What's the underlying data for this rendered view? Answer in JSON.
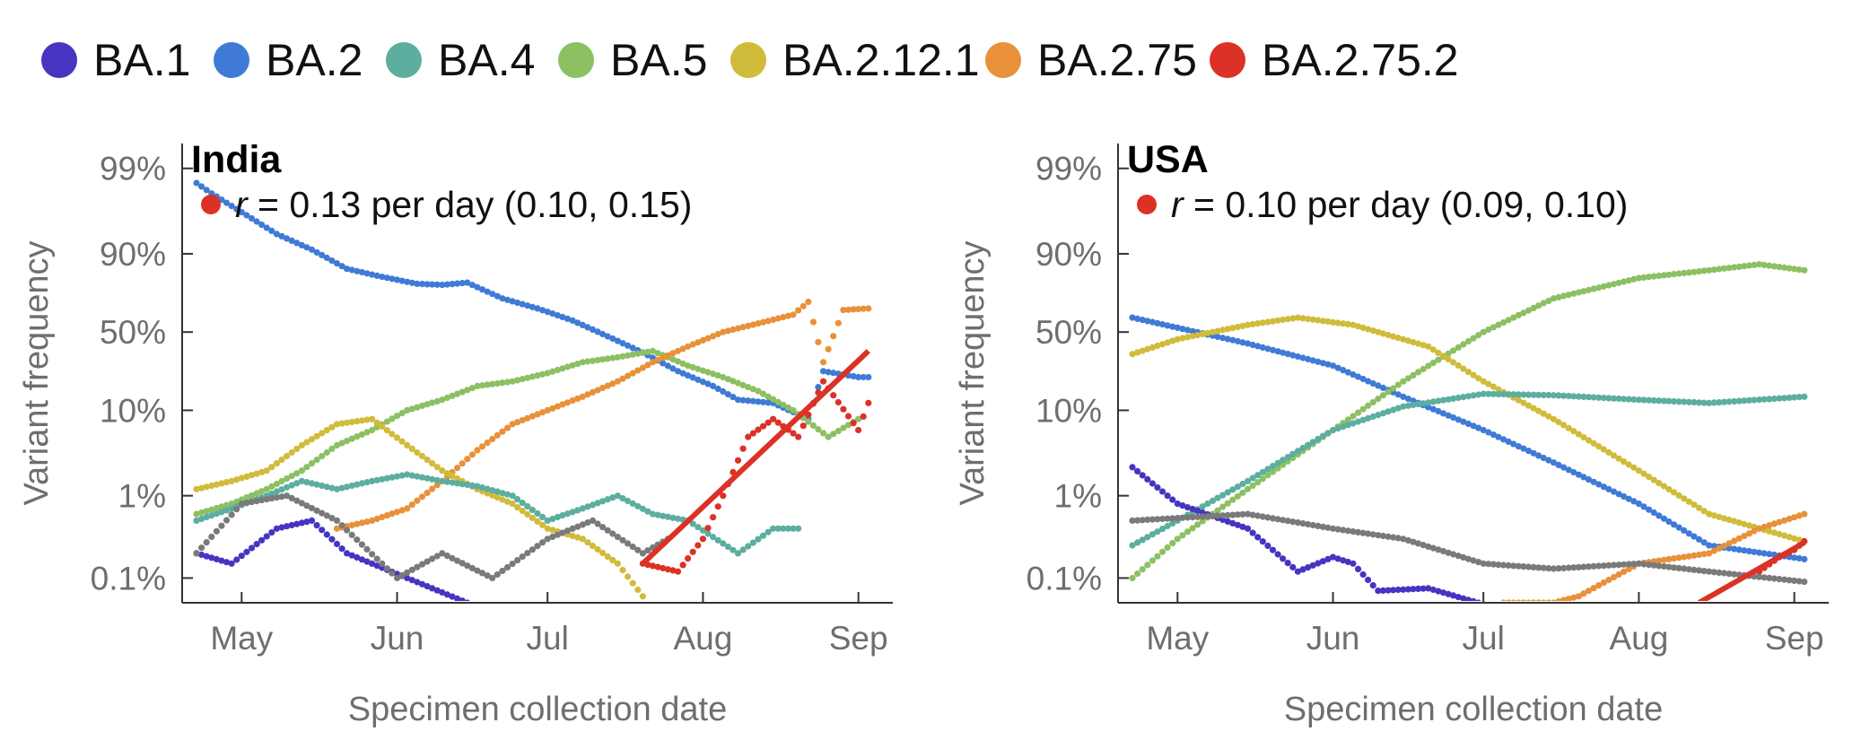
{
  "legend": [
    {
      "name": "BA.1",
      "color": "#4535c1"
    },
    {
      "name": "BA.2",
      "color": "#3f7bd6"
    },
    {
      "name": "BA.4",
      "color": "#5cae9f"
    },
    {
      "name": "BA.5",
      "color": "#8cc063"
    },
    {
      "name": "BA.2.12.1",
      "color": "#d1bb3b"
    },
    {
      "name": "BA.2.75",
      "color": "#e8913a"
    },
    {
      "name": "BA.2.75.2",
      "color": "#dc3126"
    }
  ],
  "other_color": "#7a7a7a",
  "chart_data": [
    {
      "type": "scatter",
      "title": "India",
      "rate": {
        "prefix": "r",
        "text": " = 0.13 per day (0.10, 0.15)",
        "color": "#dc3126"
      },
      "xlabel": "Specimen collection date",
      "ylabel": "Variant frequency",
      "yscale": "logit",
      "x_ticks": [
        {
          "label": "May",
          "date": "2022-05-01"
        },
        {
          "label": "Jun",
          "date": "2022-06-01"
        },
        {
          "label": "Jul",
          "date": "2022-07-01"
        },
        {
          "label": "Aug",
          "date": "2022-08-01"
        },
        {
          "label": "Sep",
          "date": "2022-09-01"
        }
      ],
      "y_ticks": [
        {
          "label": "99%",
          "value": 0.99
        },
        {
          "label": "90%",
          "value": 0.9
        },
        {
          "label": "50%",
          "value": 0.5
        },
        {
          "label": "10%",
          "value": 0.1
        },
        {
          "label": "1%",
          "value": 0.01
        },
        {
          "label": "0.1%",
          "value": 0.001
        }
      ],
      "xlim": [
        "2022-04-22",
        "2022-09-05"
      ],
      "ylim": [
        0.0005,
        0.995
      ],
      "series": [
        {
          "name": "BA.2",
          "points": [
            [
              "2022-04-22",
              0.985
            ],
            [
              "2022-04-25",
              0.98
            ],
            [
              "2022-05-08",
              0.94
            ],
            [
              "2022-05-15",
              0.91
            ],
            [
              "2022-05-22",
              0.855
            ],
            [
              "2022-05-29",
              0.825
            ],
            [
              "2022-06-05",
              0.795
            ],
            [
              "2022-06-10",
              0.79
            ],
            [
              "2022-06-15",
              0.8
            ],
            [
              "2022-06-22",
              0.72
            ],
            [
              "2022-06-29",
              0.66
            ],
            [
              "2022-07-06",
              0.58
            ],
            [
              "2022-07-13",
              0.47
            ],
            [
              "2022-07-20",
              0.36
            ],
            [
              "2022-07-27",
              0.25
            ],
            [
              "2022-08-03",
              0.18
            ],
            [
              "2022-08-08",
              0.13
            ],
            [
              "2022-08-15",
              0.12
            ],
            [
              "2022-08-22",
              0.08
            ],
            [
              "2022-08-25",
              0.25
            ],
            [
              "2022-09-01",
              0.22
            ],
            [
              "2022-09-03",
              0.22
            ]
          ]
        },
        {
          "name": "BA.5",
          "points": [
            [
              "2022-04-22",
              0.006
            ],
            [
              "2022-04-29",
              0.008
            ],
            [
              "2022-05-06",
              0.012
            ],
            [
              "2022-05-13",
              0.02
            ],
            [
              "2022-05-20",
              0.04
            ],
            [
              "2022-05-27",
              0.06
            ],
            [
              "2022-06-03",
              0.1
            ],
            [
              "2022-06-10",
              0.13
            ],
            [
              "2022-06-17",
              0.18
            ],
            [
              "2022-06-24",
              0.2
            ],
            [
              "2022-07-01",
              0.24
            ],
            [
              "2022-07-08",
              0.3
            ],
            [
              "2022-07-15",
              0.33
            ],
            [
              "2022-07-22",
              0.37
            ],
            [
              "2022-07-29",
              0.28
            ],
            [
              "2022-08-05",
              0.22
            ],
            [
              "2022-08-12",
              0.16
            ],
            [
              "2022-08-19",
              0.1
            ],
            [
              "2022-08-26",
              0.05
            ],
            [
              "2022-09-01",
              0.08
            ]
          ]
        },
        {
          "name": "BA.2.75",
          "points": [
            [
              "2022-05-20",
              0.004
            ],
            [
              "2022-05-27",
              0.005
            ],
            [
              "2022-06-03",
              0.007
            ],
            [
              "2022-06-10",
              0.015
            ],
            [
              "2022-06-17",
              0.035
            ],
            [
              "2022-06-24",
              0.07
            ],
            [
              "2022-07-01",
              0.1
            ],
            [
              "2022-07-08",
              0.14
            ],
            [
              "2022-07-15",
              0.2
            ],
            [
              "2022-07-22",
              0.3
            ],
            [
              "2022-07-29",
              0.4
            ],
            [
              "2022-08-05",
              0.5
            ],
            [
              "2022-08-12",
              0.56
            ],
            [
              "2022-08-19",
              0.62
            ],
            [
              "2022-08-22",
              0.7
            ],
            [
              "2022-08-25",
              0.3
            ],
            [
              "2022-08-29",
              0.65
            ],
            [
              "2022-09-03",
              0.66
            ]
          ]
        },
        {
          "name": "BA.2.12.1",
          "points": [
            [
              "2022-04-22",
              0.012
            ],
            [
              "2022-04-29",
              0.015
            ],
            [
              "2022-05-06",
              0.02
            ],
            [
              "2022-05-13",
              0.04
            ],
            [
              "2022-05-20",
              0.07
            ],
            [
              "2022-05-27",
              0.08
            ],
            [
              "2022-06-03",
              0.04
            ],
            [
              "2022-06-10",
              0.02
            ],
            [
              "2022-06-17",
              0.012
            ],
            [
              "2022-06-24",
              0.008
            ],
            [
              "2022-07-01",
              0.004
            ],
            [
              "2022-07-08",
              0.003
            ],
            [
              "2022-07-15",
              0.0015
            ],
            [
              "2022-07-20",
              0.0006
            ]
          ]
        },
        {
          "name": "BA.4",
          "points": [
            [
              "2022-04-22",
              0.005
            ],
            [
              "2022-04-29",
              0.007
            ],
            [
              "2022-05-06",
              0.01
            ],
            [
              "2022-05-13",
              0.015
            ],
            [
              "2022-05-20",
              0.012
            ],
            [
              "2022-05-27",
              0.015
            ],
            [
              "2022-06-03",
              0.018
            ],
            [
              "2022-06-10",
              0.015
            ],
            [
              "2022-06-17",
              0.013
            ],
            [
              "2022-06-24",
              0.01
            ],
            [
              "2022-07-01",
              0.005
            ],
            [
              "2022-07-08",
              0.007
            ],
            [
              "2022-07-15",
              0.01
            ],
            [
              "2022-07-22",
              0.006
            ],
            [
              "2022-07-29",
              0.005
            ],
            [
              "2022-08-08",
              0.002
            ],
            [
              "2022-08-15",
              0.004
            ],
            [
              "2022-08-20",
              0.004
            ]
          ]
        },
        {
          "name": "BA.1",
          "points": [
            [
              "2022-04-22",
              0.002
            ],
            [
              "2022-04-29",
              0.0015
            ],
            [
              "2022-05-08",
              0.004
            ],
            [
              "2022-05-15",
              0.005
            ],
            [
              "2022-05-22",
              0.002
            ],
            [
              "2022-06-15",
              0.0005
            ]
          ]
        },
        {
          "name": "BA.2.75.2",
          "points": [
            [
              "2022-07-20",
              0.0015
            ],
            [
              "2022-07-27",
              0.0012
            ],
            [
              "2022-08-01",
              0.003
            ],
            [
              "2022-08-05",
              0.01
            ],
            [
              "2022-08-10",
              0.05
            ],
            [
              "2022-08-15",
              0.08
            ],
            [
              "2022-08-20",
              0.05
            ],
            [
              "2022-08-25",
              0.2
            ],
            [
              "2022-09-01",
              0.06
            ],
            [
              "2022-09-03",
              0.12
            ]
          ]
        },
        {
          "name": "other",
          "points": [
            [
              "2022-04-22",
              0.002
            ],
            [
              "2022-05-01",
              0.008
            ],
            [
              "2022-05-10",
              0.01
            ],
            [
              "2022-05-20",
              0.005
            ],
            [
              "2022-06-01",
              0.001
            ],
            [
              "2022-06-10",
              0.002
            ],
            [
              "2022-06-20",
              0.001
            ],
            [
              "2022-07-01",
              0.003
            ],
            [
              "2022-07-10",
              0.005
            ],
            [
              "2022-07-20",
              0.002
            ],
            [
              "2022-07-25",
              0.003
            ]
          ]
        }
      ],
      "fit": {
        "color": "#dc3126",
        "from": [
          "2022-07-20",
          0.0015
        ],
        "to": [
          "2022-09-03",
          0.37
        ]
      }
    },
    {
      "type": "scatter",
      "title": "USA",
      "rate": {
        "prefix": "r",
        "text": " = 0.10 per day (0.09, 0.10)",
        "color": "#dc3126"
      },
      "xlabel": "Specimen collection date",
      "ylabel": "Variant frequency",
      "yscale": "logit",
      "x_ticks": [
        {
          "label": "May",
          "date": "2022-05-01"
        },
        {
          "label": "Jun",
          "date": "2022-06-01"
        },
        {
          "label": "Jul",
          "date": "2022-07-01"
        },
        {
          "label": "Aug",
          "date": "2022-08-01"
        },
        {
          "label": "Sep",
          "date": "2022-09-01"
        }
      ],
      "y_ticks": [
        {
          "label": "99%",
          "value": 0.99
        },
        {
          "label": "90%",
          "value": 0.9
        },
        {
          "label": "50%",
          "value": 0.5
        },
        {
          "label": "10%",
          "value": 0.1
        },
        {
          "label": "1%",
          "value": 0.01
        },
        {
          "label": "0.1%",
          "value": 0.001
        }
      ],
      "xlim": [
        "2022-04-22",
        "2022-09-05"
      ],
      "ylim": [
        0.0005,
        0.995
      ],
      "series": [
        {
          "name": "BA.2",
          "points": [
            [
              "2022-04-22",
              0.6
            ],
            [
              "2022-05-01",
              0.53
            ],
            [
              "2022-05-15",
              0.42
            ],
            [
              "2022-06-01",
              0.28
            ],
            [
              "2022-06-15",
              0.14
            ],
            [
              "2022-07-01",
              0.06
            ],
            [
              "2022-07-15",
              0.025
            ],
            [
              "2022-08-01",
              0.008
            ],
            [
              "2022-08-15",
              0.0025
            ],
            [
              "2022-09-03",
              0.0017
            ]
          ]
        },
        {
          "name": "BA.5",
          "points": [
            [
              "2022-04-22",
              0.001
            ],
            [
              "2022-05-01",
              0.003
            ],
            [
              "2022-05-15",
              0.012
            ],
            [
              "2022-06-01",
              0.06
            ],
            [
              "2022-06-15",
              0.2
            ],
            [
              "2022-07-01",
              0.5
            ],
            [
              "2022-07-15",
              0.72
            ],
            [
              "2022-08-01",
              0.82
            ],
            [
              "2022-08-15",
              0.85
            ],
            [
              "2022-08-25",
              0.87
            ],
            [
              "2022-09-03",
              0.85
            ]
          ]
        },
        {
          "name": "BA.2.12.1",
          "points": [
            [
              "2022-04-22",
              0.35
            ],
            [
              "2022-05-01",
              0.45
            ],
            [
              "2022-05-15",
              0.55
            ],
            [
              "2022-05-25",
              0.6
            ],
            [
              "2022-06-05",
              0.55
            ],
            [
              "2022-06-20",
              0.4
            ],
            [
              "2022-07-01",
              0.2
            ],
            [
              "2022-07-15",
              0.08
            ],
            [
              "2022-08-01",
              0.02
            ],
            [
              "2022-08-15",
              0.006
            ],
            [
              "2022-09-03",
              0.0028
            ]
          ]
        },
        {
          "name": "BA.4",
          "points": [
            [
              "2022-04-22",
              0.0025
            ],
            [
              "2022-05-01",
              0.005
            ],
            [
              "2022-05-15",
              0.015
            ],
            [
              "2022-06-01",
              0.06
            ],
            [
              "2022-06-15",
              0.11
            ],
            [
              "2022-07-01",
              0.15
            ],
            [
              "2022-07-15",
              0.145
            ],
            [
              "2022-08-01",
              0.13
            ],
            [
              "2022-08-15",
              0.12
            ],
            [
              "2022-09-03",
              0.14
            ]
          ]
        },
        {
          "name": "BA.1",
          "points": [
            [
              "2022-04-22",
              0.022
            ],
            [
              "2022-05-01",
              0.008
            ],
            [
              "2022-05-15",
              0.004
            ],
            [
              "2022-05-25",
              0.0012
            ],
            [
              "2022-06-01",
              0.0018
            ],
            [
              "2022-06-05",
              0.0015
            ],
            [
              "2022-06-10",
              0.0007
            ],
            [
              "2022-06-20",
              0.00075
            ],
            [
              "2022-06-30",
              0.0005
            ]
          ]
        },
        {
          "name": "BA.2.75",
          "points": [
            [
              "2022-07-05",
              0.0005
            ],
            [
              "2022-07-15",
              0.0005
            ],
            [
              "2022-07-20",
              0.0006
            ],
            [
              "2022-08-01",
              0.0015
            ],
            [
              "2022-08-15",
              0.002
            ],
            [
              "2022-08-25",
              0.004
            ],
            [
              "2022-09-03",
              0.006
            ]
          ]
        },
        {
          "name": "BA.2.75.2",
          "points": [
            [
              "2022-08-25",
              0.0012
            ],
            [
              "2022-08-29",
              0.0018
            ],
            [
              "2022-09-01",
              0.0022
            ],
            [
              "2022-09-03",
              0.0028
            ]
          ]
        },
        {
          "name": "other",
          "points": [
            [
              "2022-04-22",
              0.005
            ],
            [
              "2022-05-15",
              0.006
            ],
            [
              "2022-06-01",
              0.004
            ],
            [
              "2022-06-15",
              0.003
            ],
            [
              "2022-07-01",
              0.0015
            ],
            [
              "2022-07-15",
              0.0013
            ],
            [
              "2022-08-01",
              0.0015
            ],
            [
              "2022-08-15",
              0.0012
            ],
            [
              "2022-09-03",
              0.0009
            ]
          ]
        }
      ],
      "fit": {
        "color": "#dc3126",
        "from": [
          "2022-08-13",
          0.0005
        ],
        "to": [
          "2022-09-03",
          0.0027
        ]
      }
    }
  ]
}
